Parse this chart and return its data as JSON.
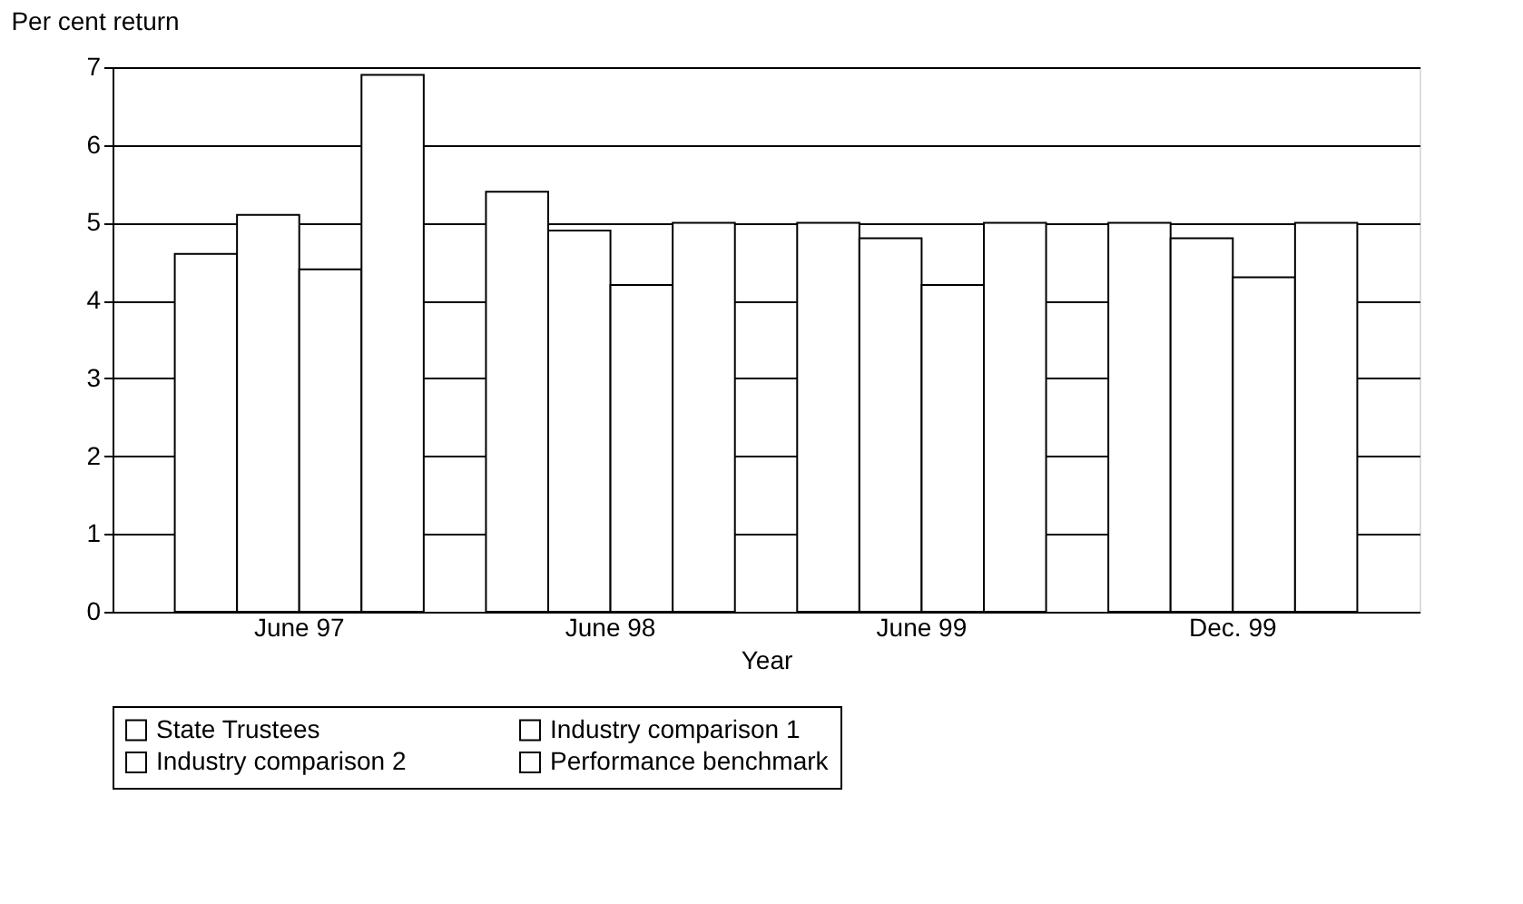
{
  "chart_data": {
    "type": "bar",
    "xlabel": "Year",
    "ylabel": "Per cent return",
    "categories": [
      "June 97",
      "June 98",
      "June 99",
      "Dec. 99"
    ],
    "series": [
      {
        "name": "State Trustees",
        "color": "#ffffff",
        "values": [
          4.6,
          5.4,
          5.0,
          5.0
        ]
      },
      {
        "name": "Industry comparison 1",
        "color": "#ffffff",
        "values": [
          5.1,
          4.9,
          4.8,
          4.8
        ]
      },
      {
        "name": "Industry comparison 2",
        "color": "#ffffff",
        "values": [
          4.4,
          4.2,
          4.2,
          4.3
        ]
      },
      {
        "name": "Performance benchmark",
        "color": "#ffffff",
        "values": [
          6.9,
          5.0,
          5.0,
          5.0
        ]
      }
    ],
    "ylim": [
      0,
      7
    ],
    "yticks": [
      0,
      1,
      2,
      3,
      4,
      5,
      6,
      7
    ],
    "grid": "y",
    "legend": "bottom"
  }
}
